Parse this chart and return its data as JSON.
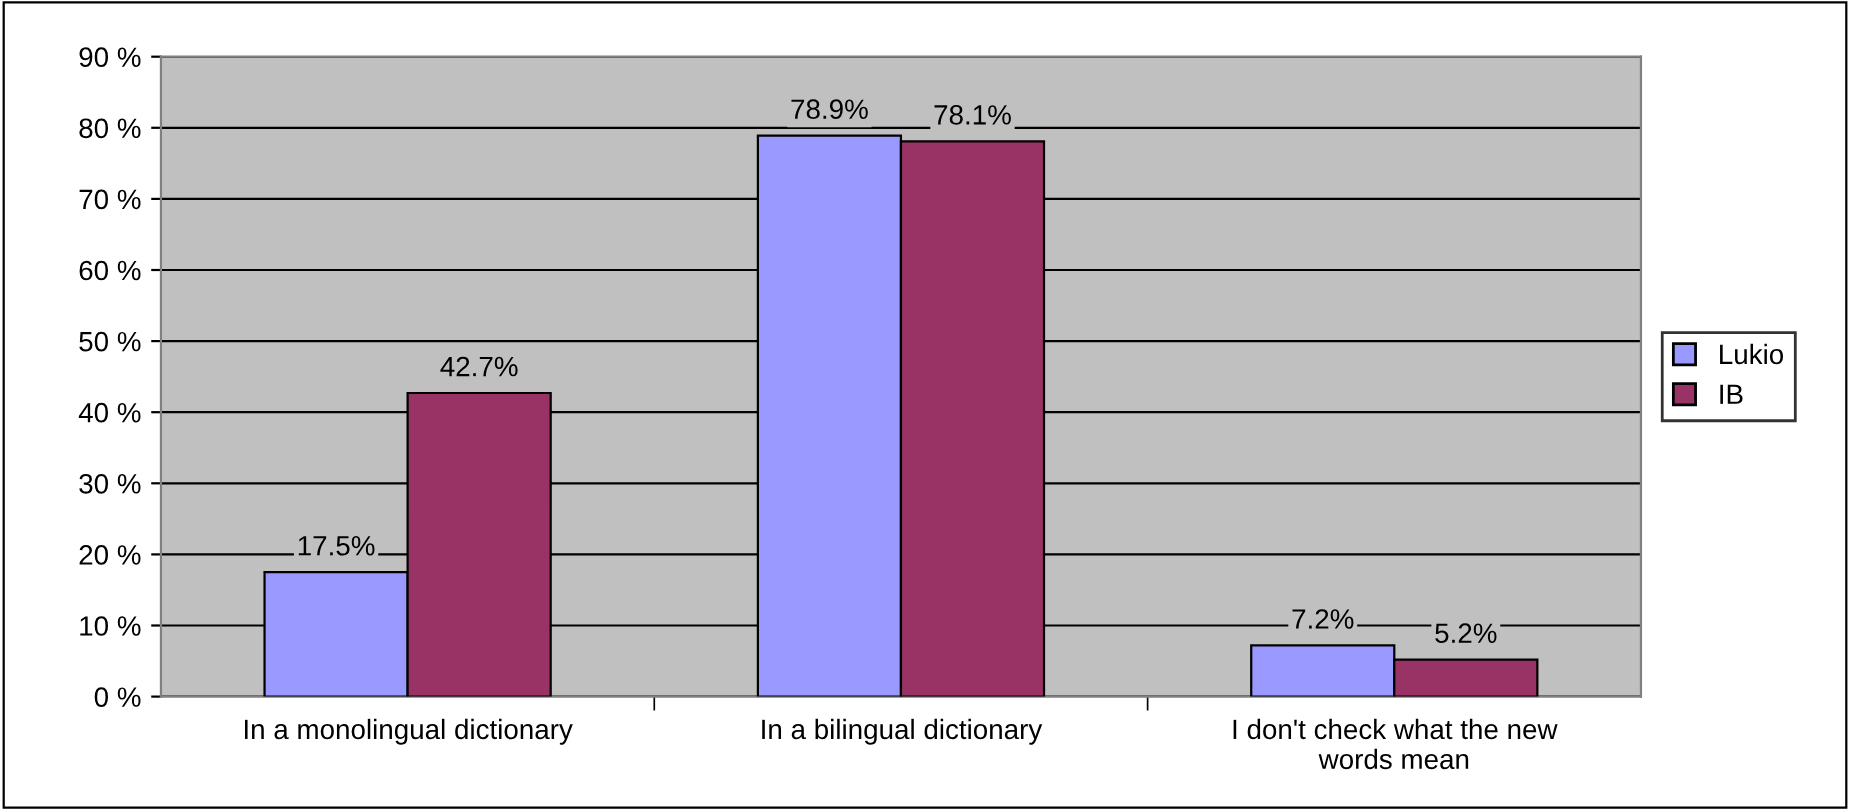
{
  "chart_data": {
    "type": "bar",
    "categories": [
      "In a monolingual dictionary",
      "In a bilingual dictionary",
      "I don't check what the new\nwords mean"
    ],
    "series": [
      {
        "name": "Lukio",
        "color": "#9999ff",
        "values": [
          17.5,
          78.9,
          7.2
        ],
        "value_labels": [
          "17.5%",
          "78.9%",
          "7.2%"
        ]
      },
      {
        "name": "IB",
        "color": "#993366",
        "values": [
          42.7,
          78.1,
          5.2
        ],
        "value_labels": [
          "42.7%",
          "78.1%",
          "5.2%"
        ]
      }
    ],
    "ylim": [
      0,
      90
    ],
    "yticks": [
      {
        "value": 0,
        "label": "0 %"
      },
      {
        "value": 10,
        "label": "10 %"
      },
      {
        "value": 20,
        "label": "20 %"
      },
      {
        "value": 30,
        "label": "30 %"
      },
      {
        "value": 40,
        "label": "40 %"
      },
      {
        "value": 50,
        "label": "50 %"
      },
      {
        "value": 60,
        "label": "60 %"
      },
      {
        "value": 70,
        "label": "70 %"
      },
      {
        "value": 80,
        "label": "80 %"
      },
      {
        "value": 90,
        "label": "90 %"
      }
    ],
    "grid": "y",
    "legend": "right"
  }
}
